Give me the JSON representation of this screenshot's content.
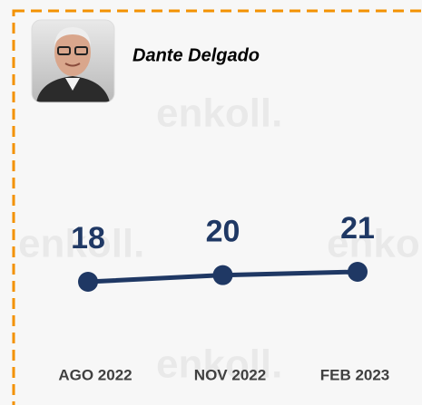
{
  "chart_data": {
    "type": "line",
    "title": "Dante Delgado",
    "watermark": "enkoll.",
    "categories": [
      "AGO 2022",
      "NOV 2022",
      "FEB 2023"
    ],
    "series": [
      {
        "name": "Dante Delgado",
        "color": "#1f3864",
        "values": [
          18,
          20,
          21
        ]
      }
    ]
  }
}
